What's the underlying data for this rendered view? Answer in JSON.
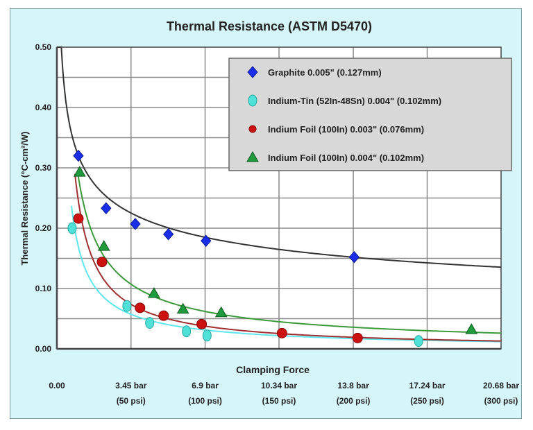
{
  "chart_data": {
    "type": "scatter",
    "title": "Thermal Resistance (ASTM D5470)",
    "xlabel": "Clamping Force",
    "ylabel": "Thermal Resistance (°C-cm²/W)",
    "x_unit": "bar",
    "xlim": [
      0,
      20.68
    ],
    "ylim": [
      0,
      0.5
    ],
    "grid": true,
    "legend_position": "top-right",
    "y_ticks": [
      {
        "value": 0.0,
        "label": "0.00"
      },
      {
        "value": 0.1,
        "label": "0.10"
      },
      {
        "value": 0.2,
        "label": "0.20"
      },
      {
        "value": 0.3,
        "label": "0.30"
      },
      {
        "value": 0.4,
        "label": "0.40"
      },
      {
        "value": 0.5,
        "label": "0.50"
      }
    ],
    "y_gridlines": [
      0.05,
      0.1,
      0.15,
      0.2,
      0.25,
      0.3,
      0.35,
      0.4,
      0.45,
      0.5
    ],
    "x_ticks": [
      {
        "value": 0,
        "label": "0.00",
        "sublabel": ""
      },
      {
        "value": 3.45,
        "label": "3.45 bar",
        "sublabel": "(50 psi)"
      },
      {
        "value": 6.9,
        "label": "6.9 bar",
        "sublabel": "(100 psi)"
      },
      {
        "value": 10.34,
        "label": "10.34 bar",
        "sublabel": "(150 psi)"
      },
      {
        "value": 13.8,
        "label": "13.8 bar",
        "sublabel": "(200 psi)"
      },
      {
        "value": 17.24,
        "label": "17.24 bar",
        "sublabel": "(250 psi)"
      },
      {
        "value": 20.68,
        "label": "20.68 bar",
        "sublabel": "(300 psi)"
      }
    ],
    "series": [
      {
        "name": "Graphite 0.005\" (0.127mm)",
        "marker": "diamond",
        "color": "#1a2ee8",
        "line_color": "#333333",
        "x": [
          1.0,
          2.29,
          3.65,
          5.19,
          6.94,
          13.84
        ],
        "y": [
          0.32,
          0.233,
          0.207,
          0.19,
          0.179,
          0.152
        ],
        "trend": {
          "a": 0.32,
          "b": -0.284,
          "x_start": 0.0
        }
      },
      {
        "name": "Indium-Tin (52In-48Sn) 0.004\" (0.102mm)",
        "marker": "ellipse",
        "color": "#4fe0d8",
        "line_color": "#5ee6ee",
        "x": [
          0.71,
          3.26,
          4.32,
          6.03,
          6.99,
          16.84
        ],
        "y": [
          0.2,
          0.071,
          0.043,
          0.029,
          0.022,
          0.013
        ],
        "trend": {
          "a": 0.169,
          "b": -0.874,
          "x_start": 0.68
        }
      },
      {
        "name": "Indium Foil (100In) 0.003\" (0.076mm)",
        "marker": "circle",
        "color": "#cc1111",
        "line_color": "#a03030",
        "x": [
          1.0,
          2.1,
          3.87,
          4.97,
          6.74,
          10.48,
          14.0
        ],
        "y": [
          0.216,
          0.144,
          0.068,
          0.055,
          0.041,
          0.026,
          0.018
        ],
        "trend": {
          "a": 0.245,
          "b": -0.97,
          "x_start": 0.84
        }
      },
      {
        "name": "Indium Foil (100In) 0.004\" (0.102mm)",
        "marker": "triangle",
        "color": "#1f9a3c",
        "line_color": "#3a9a3a",
        "x": [
          1.06,
          2.19,
          4.52,
          5.87,
          7.65,
          19.3
        ],
        "y": [
          0.293,
          0.17,
          0.092,
          0.066,
          0.06,
          0.032
        ],
        "trend": {
          "a": 0.285,
          "b": -0.79,
          "x_start": 1.0
        }
      }
    ]
  }
}
